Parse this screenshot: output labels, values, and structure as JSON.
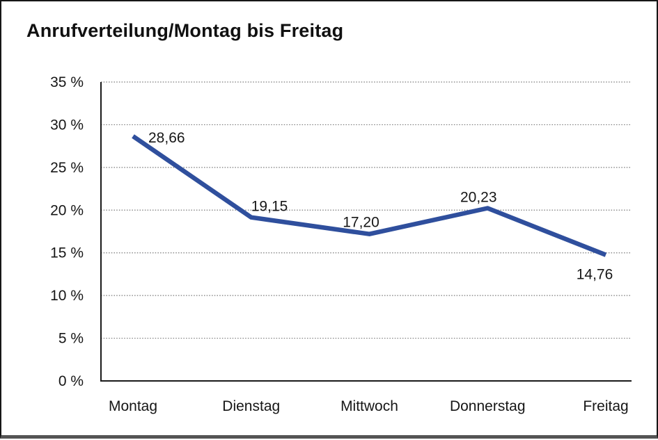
{
  "chart_data": {
    "type": "line",
    "title": "Anrufverteilung/Montag bis Freitag",
    "categories": [
      "Montag",
      "Dienstag",
      "Mittwoch",
      "Donnerstag",
      "Freitag"
    ],
    "values": [
      28.66,
      19.15,
      17.2,
      20.23,
      14.76
    ],
    "value_labels": [
      "28,66",
      "19,15",
      "17,20",
      "20,23",
      "14,76"
    ],
    "xlabel": "",
    "ylabel": "",
    "ylim": [
      0,
      35
    ],
    "y_tick_step": 5,
    "y_tick_labels": [
      "0 %",
      "5 %",
      "10 %",
      "15 %",
      "20 %",
      "25 %",
      "30 %",
      "35 %"
    ],
    "grid": "horizontal-dotted",
    "legend": "none",
    "line_color": "#2f4f9d",
    "axis_color": "#1a1a1a",
    "grid_color": "#787878",
    "label_color": "#161616"
  }
}
